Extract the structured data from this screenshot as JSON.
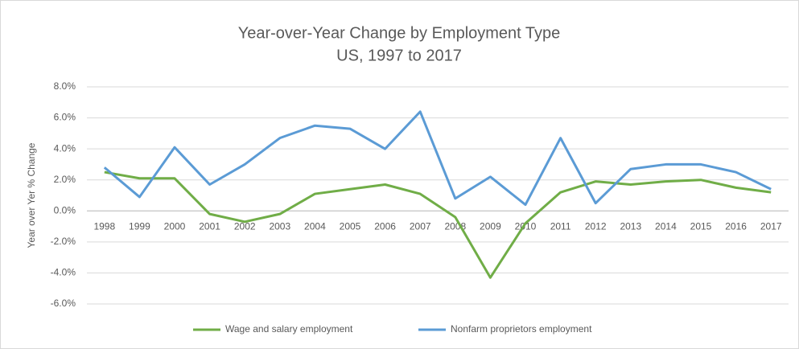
{
  "chart_data": {
    "type": "line",
    "title": "Year-over-Year Change by Employment Type",
    "subtitle": "US, 1997 to 2017",
    "y_label": "Year over Yer % Change",
    "categories": [
      "1998",
      "1999",
      "2000",
      "2001",
      "2002",
      "2003",
      "2004",
      "2005",
      "2006",
      "2007",
      "2008",
      "2009",
      "2010",
      "2011",
      "2012",
      "2013",
      "2014",
      "2015",
      "2016",
      "2017"
    ],
    "series": [
      {
        "name": "Wage and salary employment",
        "color": "#70ad47",
        "values": [
          2.5,
          2.1,
          2.1,
          -0.2,
          -0.7,
          -0.2,
          1.1,
          1.4,
          1.7,
          1.1,
          -0.4,
          -4.3,
          -0.8,
          1.2,
          1.9,
          1.7,
          1.9,
          2.0,
          1.5,
          1.2
        ]
      },
      {
        "name": "Nonfarm proprietors employment",
        "color": "#5b9bd5",
        "values": [
          2.8,
          0.9,
          4.1,
          1.7,
          3.0,
          4.7,
          5.5,
          5.3,
          4.0,
          6.4,
          0.8,
          2.2,
          0.4,
          4.7,
          0.5,
          2.7,
          3.0,
          3.0,
          2.5,
          1.4
        ]
      }
    ],
    "ylim": [
      -6,
      8
    ],
    "yticks": [
      {
        "value": -6,
        "label": "-6.0%"
      },
      {
        "value": -4,
        "label": "-4.0%"
      },
      {
        "value": -2,
        "label": "-2.0%"
      },
      {
        "value": 0,
        "label": "0.0%"
      },
      {
        "value": 2,
        "label": "2.0%"
      },
      {
        "value": 4,
        "label": "4.0%"
      },
      {
        "value": 6,
        "label": "6.0%"
      },
      {
        "value": 8,
        "label": "8.0%"
      }
    ],
    "grid": true,
    "legend": "bottom"
  }
}
